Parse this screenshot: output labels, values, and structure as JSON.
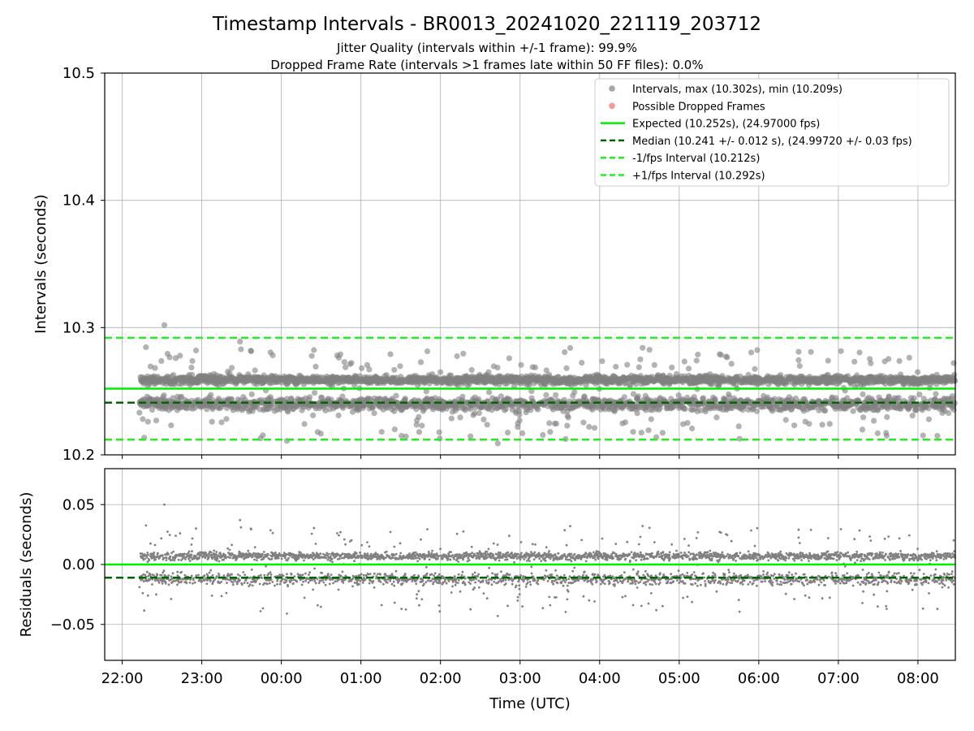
{
  "figure": {
    "title": "Timestamp Intervals - BR0013_20241020_221119_203712",
    "subtitle_1": "Jitter Quality (intervals within +/-1 frame): 99.9%",
    "subtitle_2": "Dropped Frame Rate (intervals >1 frames late within 50 FF files): 0.0%"
  },
  "chart_data": [
    {
      "type": "scatter",
      "panel": "intervals",
      "ylabel": "Intervals (seconds)",
      "xlabel": "",
      "ylim": [
        10.2,
        10.5
      ],
      "y_ticks": [
        "10.2",
        "10.3",
        "10.4",
        "10.5"
      ],
      "x_range_hours": [
        -2.22,
        8.47
      ],
      "grid": true,
      "legend_position": "top-right",
      "legend": [
        {
          "label": "Intervals, max (10.302s), min (10.209s)",
          "marker": "dot",
          "color": "#808080"
        },
        {
          "label": "Possible Dropped Frames",
          "marker": "dot",
          "color": "#f26b6b"
        },
        {
          "label": "Expected (10.252s), (24.97000 fps)",
          "marker": "solid-line",
          "color": "#00ee00"
        },
        {
          "label": "Median (10.241 +/- 0.012 s), (24.99720 +/- 0.03 fps)",
          "marker": "dashed-line",
          "color": "#006400"
        },
        {
          "label": "-1/fps Interval (10.212s)",
          "marker": "dashed-line",
          "color": "#22ee22"
        },
        {
          "label": "+1/fps Interval (10.292s)",
          "marker": "dashed-line",
          "color": "#22ee22"
        }
      ],
      "reference_lines": {
        "expected": 10.252,
        "median": 10.241,
        "minus_fps": 10.212,
        "plus_fps": 10.292
      },
      "series": [
        {
          "name": "Intervals, max (10.302s), min (10.209s)",
          "x_start": "22:13",
          "x_end": "08:28",
          "clusters": [
            {
              "center": 10.259,
              "share": 0.52
            },
            {
              "center": 10.24,
              "share": 0.4
            }
          ],
          "max": 10.302,
          "min": 10.209,
          "notable_points": [
            {
              "x": -1.47,
              "y": 10.302
            },
            {
              "x": -0.52,
              "y": 10.289
            },
            {
              "x": 2.72,
              "y": 10.209
            },
            {
              "x": 3.63,
              "y": 10.284
            },
            {
              "x": 0.07,
              "y": 10.211
            },
            {
              "x": 6.5,
              "y": 10.281
            }
          ]
        },
        {
          "name": "Possible Dropped Frames",
          "points": []
        }
      ]
    },
    {
      "type": "scatter",
      "panel": "residuals",
      "ylabel": "Residuals (seconds)",
      "xlabel": "Time (UTC)",
      "ylim": [
        -0.08,
        0.08
      ],
      "y_ticks": [
        "−0.05",
        "0.00",
        "0.05"
      ],
      "x_ticks": [
        "22:00",
        "23:00",
        "00:00",
        "01:00",
        "02:00",
        "03:00",
        "04:00",
        "05:00",
        "06:00",
        "07:00",
        "08:00"
      ],
      "x_range_hours": [
        -2.22,
        8.47
      ],
      "grid": true,
      "reference_lines": {
        "zero": 0.0,
        "median_offset": -0.011
      },
      "series": [
        {
          "name": "Residuals",
          "x_start": "22:13",
          "x_end": "08:28",
          "clusters": [
            {
              "center": 0.007,
              "share": 0.52
            },
            {
              "center": -0.012,
              "share": 0.4
            }
          ],
          "max": 0.05,
          "min": -0.043
        }
      ]
    }
  ],
  "colors": {
    "points": "#808080",
    "expected": "#00ee00",
    "median": "#006400",
    "fps_bounds": "#22ee22",
    "dropped": "#f26b6b",
    "grid": "#b0b0b0"
  }
}
